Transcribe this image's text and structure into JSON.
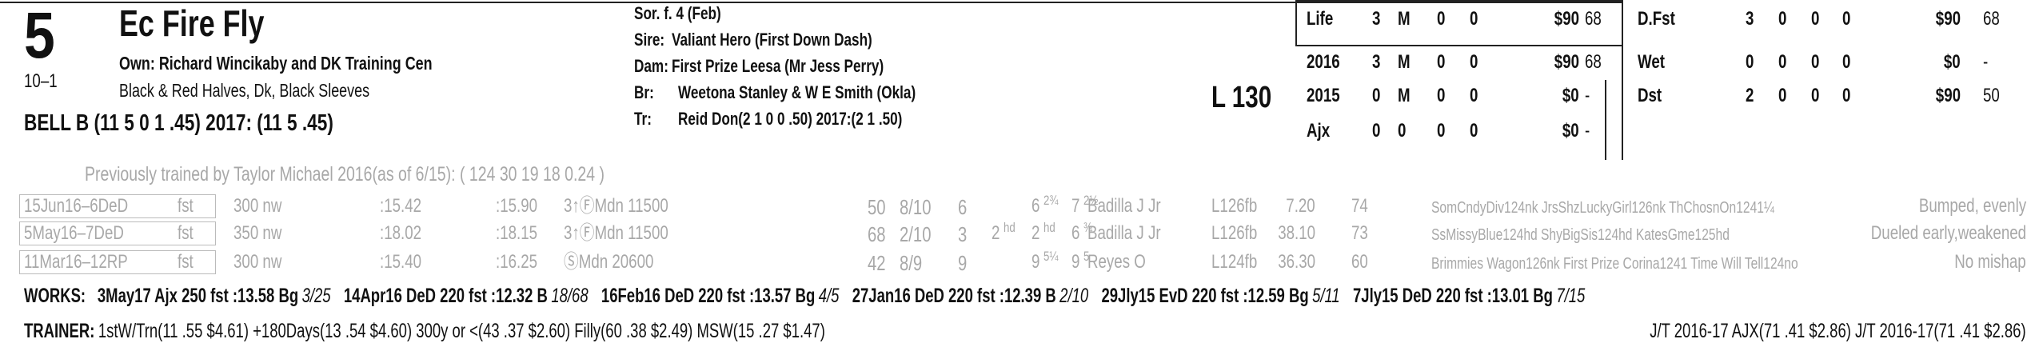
{
  "header": {
    "post": "5",
    "name": "Ec Fire Fly",
    "odds": "10–1",
    "owner": "Own: Richard Wincikaby and DK Training Cen",
    "silks": "Black & Red Halves, Dk, Black Sleeves",
    "jockey": "BELL B (11 5 0 1 .45) 2017: (11 5 .45)"
  },
  "breeding": {
    "sex_age": "Sor. f. 4 (Feb)",
    "lines": [
      {
        "label": "Sire:",
        "text": "Valiant Hero (First Down Dash)"
      },
      {
        "label": "Dam:",
        "text": "First Prize Leesa (Mr Jess Perry)"
      },
      {
        "label": "Br:",
        "text": "Weetona Stanley & W E Smith (Okla)"
      },
      {
        "label": "Tr:",
        "text": "Reid Don(2 1 0 0 .50) 2017:(2 1 .50)"
      }
    ]
  },
  "weight": "L 130",
  "stats_left": [
    [
      "Life",
      "3",
      "M",
      "0",
      "0",
      "$90",
      "68"
    ],
    [
      "2016",
      "3",
      "M",
      "0",
      "0",
      "$90",
      "68"
    ],
    [
      "2015",
      "0",
      "M",
      "0",
      "0",
      "$0",
      "-"
    ],
    [
      "Ajx",
      "0",
      "0",
      "0",
      "0",
      "$0",
      "-"
    ]
  ],
  "stats_right": [
    [
      "D.Fst",
      "3",
      "0",
      "0",
      "0",
      "$90",
      "68"
    ],
    [
      "Wet",
      "0",
      "0",
      "0",
      "0",
      "$0",
      "-"
    ],
    [
      "Dst",
      "2",
      "0",
      "0",
      "0",
      "$90",
      "50"
    ]
  ],
  "previous_trainer": "Previously trained by Taylor Michael 2016(as of 6/15): ( 124 30 19 18 0.24 )",
  "past_performances": {
    "rows": [
      {
        "date": "15Jun16–6DeD",
        "cond": "fst",
        "dist": "300 nw",
        "frac1": ":15.42",
        "frac2": ":15.90",
        "race": "3↑ⒻMdn 11500",
        "speed": "50",
        "pp": "8/10",
        "start": "6",
        "str": "6",
        "str_margin": "2¾",
        "fin": "7",
        "fin_margin": "2½",
        "jockey": "Badilla J Jr",
        "wt": "L126fb",
        "odds": "7.20",
        "index": "74",
        "top": "SomCndyDiv124nk JrsShzLuckyGirl126nk ThChosnOn1241¼",
        "comment": "Bumped, evenly"
      },
      {
        "date": "5May16–7DeD",
        "cond": "fst",
        "dist": "350 nw",
        "frac1": ":18.02",
        "frac2": ":18.15",
        "race": "3↑ⒻMdn 11500",
        "speed": "68",
        "pp": "2/10",
        "start": "3",
        "call": "2",
        "call_margin": "hd",
        "str": "2",
        "str_margin": "hd",
        "fin": "6",
        "fin_margin": "¾",
        "jockey": "Badilla J Jr",
        "wt": "L126fb",
        "odds": "38.10",
        "index": "73",
        "top": "SsMissyBlue124hd ShyBigSis124hd KatesGme125hd",
        "comment": "Dueled early,weakened"
      },
      {
        "date": "11Mar16–12RP",
        "cond": "fst",
        "dist": "300 nw",
        "frac1": ":15.40",
        "frac2": ":16.25",
        "race": "ⓈMdn 20600",
        "speed": "42",
        "pp": "8/9",
        "start": "9",
        "str": "9",
        "str_margin": "5¼",
        "fin": "9",
        "fin_margin": "5",
        "jockey": "Reyes O",
        "wt": "L124fb",
        "odds": "36.30",
        "index": "60",
        "top": "Brimmies Wagon126nk First Prize Corina1241 Time Will Tell124no",
        "comment": "No mishap"
      }
    ]
  },
  "works": {
    "label": "WORKS:",
    "items": [
      {
        "text": "3May17 Ajx 250 fst :13.58 Bg",
        "rank": "3/25"
      },
      {
        "text": "14Apr16 DeD 220 fst :12.32 B",
        "rank": "18/68"
      },
      {
        "text": "16Feb16 DeD 220 fst :13.57 Bg",
        "rank": "4/5"
      },
      {
        "text": "27Jan16 DeD 220 fst :12.39 B",
        "rank": "2/10"
      },
      {
        "text": "29Jly15 EvD 220 fst :12.59 Bg",
        "rank": "5/11"
      },
      {
        "text": "7Jly15 DeD 220 fst :13.01 Bg",
        "rank": "7/15"
      }
    ]
  },
  "trainer": {
    "label": "TRAINER:",
    "text": "1stW/Trn(11 .55 $4.61) +180Days(13 .54 $4.60) 300y or <(43 .37 $2.60) Filly(60 .38 $2.49) MSW(15 .27 $1.47)",
    "jt": "J/T 2016-17 AJX(71 .41 $2.86)  J/T 2016-17(71 .41 $2.86)"
  }
}
